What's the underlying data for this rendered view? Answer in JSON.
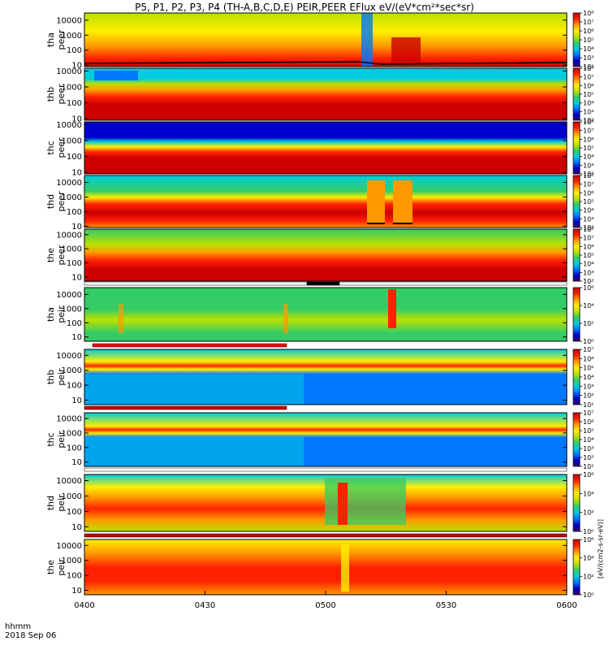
{
  "title": "P5, P1, P2, P3, P4 (TH-A,B,C,D,E) PEIR,PEER EFlux eV/(eV*cm²*sec*sr)",
  "time_axis": {
    "unit_label": "hhmm",
    "date_label": "2018 Sep 06"
  },
  "colorbar_unit_label": "[eV/(cm2-s-sr-eV)]",
  "colors": {
    "spectrogram_scale": [
      "#3a0066",
      "#0000cc",
      "#0077ff",
      "#00ccdd",
      "#33cc66",
      "#bbe000",
      "#ffee00",
      "#ff9900",
      "#ff2200",
      "#cc0000"
    ]
  },
  "chart_data": {
    "type": "heatmap",
    "title": "P5, P1, P2, P3, P4 (TH-A,B,C,D,E) PEIR,PEER EFlux eV/(eV*cm²*sec*sr)",
    "x": {
      "label": "hhmm",
      "range": [
        "0400",
        "0600"
      ],
      "ticks": [
        "0400",
        "0430",
        "0500",
        "0530",
        "0600"
      ]
    },
    "y_scale": "log",
    "panels": [
      {
        "probe": "tha",
        "species": "peer",
        "ylabel": "tha peer",
        "yrange": [
          8,
          30000
        ],
        "yticks": [
          "10",
          "100",
          "1000",
          "10000"
        ],
        "colorbar": {
          "range": [
            100,
            100000000
          ],
          "ticks": [
            "10²",
            "10³",
            "10⁴",
            "10⁵",
            "10⁶",
            "10⁷",
            "10⁸"
          ]
        }
      },
      {
        "probe": "thb",
        "species": "peer",
        "ylabel": "thb peer",
        "yrange": [
          8,
          15000
        ],
        "yticks": [
          "10",
          "100",
          "1000",
          "10000"
        ],
        "colorbar": {
          "range": [
            100,
            100000000
          ],
          "ticks": [
            "10²",
            "10³",
            "10⁴",
            "10⁵",
            "10⁶",
            "10⁷",
            "10⁸"
          ]
        }
      },
      {
        "probe": "thc",
        "species": "peer",
        "ylabel": "thc peer",
        "yrange": [
          8,
          15000
        ],
        "yticks": [
          "10",
          "100",
          "1000",
          "10000"
        ],
        "colorbar": {
          "range": [
            100,
            100000000
          ],
          "ticks": [
            "10²",
            "10³",
            "10⁴",
            "10⁵",
            "10⁶",
            "10⁷",
            "10⁸"
          ]
        }
      },
      {
        "probe": "thd",
        "species": "peer",
        "ylabel": "thd peer",
        "yrange": [
          8,
          30000
        ],
        "yticks": [
          "10",
          "100",
          "1000",
          "10000"
        ],
        "colorbar": {
          "range": [
            100,
            100000000
          ],
          "ticks": [
            "10²",
            "10³",
            "10⁴",
            "10⁵",
            "10⁶",
            "10⁷",
            "10⁸"
          ]
        }
      },
      {
        "probe": "the",
        "species": "peer",
        "ylabel": "the peer",
        "yrange": [
          5,
          25000
        ],
        "yticks": [
          "10",
          "100",
          "1000",
          "10000"
        ],
        "colorbar": {
          "range": [
            100,
            100000000
          ],
          "ticks": [
            "10²",
            "10³",
            "10⁴",
            "10⁵",
            "10⁶",
            "10⁷",
            "10⁸"
          ]
        }
      },
      {
        "probe": "tha",
        "species": "peir",
        "ylabel": "tha peir",
        "yrange": [
          5,
          30000
        ],
        "yticks": [
          "10",
          "100",
          "1000",
          "10000"
        ],
        "colorbar": {
          "range": [
            1,
            1000000
          ],
          "ticks": [
            "10⁰",
            "10²",
            "10⁴",
            "10⁶"
          ]
        }
      },
      {
        "probe": "thb",
        "species": "peir",
        "ylabel": "thb peir",
        "yrange": [
          5,
          25000
        ],
        "yticks": [
          "10",
          "100",
          "1000",
          "10000"
        ],
        "colorbar": {
          "range": [
            10,
            10000000
          ],
          "ticks": [
            "10¹",
            "10²",
            "10³",
            "10⁴",
            "10⁵",
            "10⁶",
            "10⁷"
          ]
        }
      },
      {
        "probe": "thc",
        "species": "peir",
        "ylabel": "thc peir",
        "yrange": [
          5,
          25000
        ],
        "yticks": [
          "10",
          "100",
          "1000",
          "10000"
        ],
        "colorbar": {
          "range": [
            10,
            10000000
          ],
          "ticks": [
            "10¹",
            "10²",
            "10³",
            "10⁴",
            "10⁵",
            "10⁶",
            "10⁷"
          ]
        }
      },
      {
        "probe": "thd",
        "species": "peir",
        "ylabel": "thd peir",
        "yrange": [
          5,
          25000
        ],
        "yticks": [
          "10",
          "100",
          "1000",
          "10000"
        ],
        "colorbar": {
          "range": [
            1,
            1000000
          ],
          "ticks": [
            "10⁰",
            "10²",
            "10⁴",
            "10⁶"
          ]
        }
      },
      {
        "probe": "the",
        "species": "peir",
        "ylabel": "the peir",
        "yrange": [
          5,
          25000
        ],
        "yticks": [
          "10",
          "100",
          "1000",
          "10000"
        ],
        "colorbar": {
          "range": [
            1,
            1000000
          ],
          "ticks": [
            "10⁰",
            "10²",
            "10⁴",
            "10⁶"
          ]
        }
      }
    ]
  }
}
